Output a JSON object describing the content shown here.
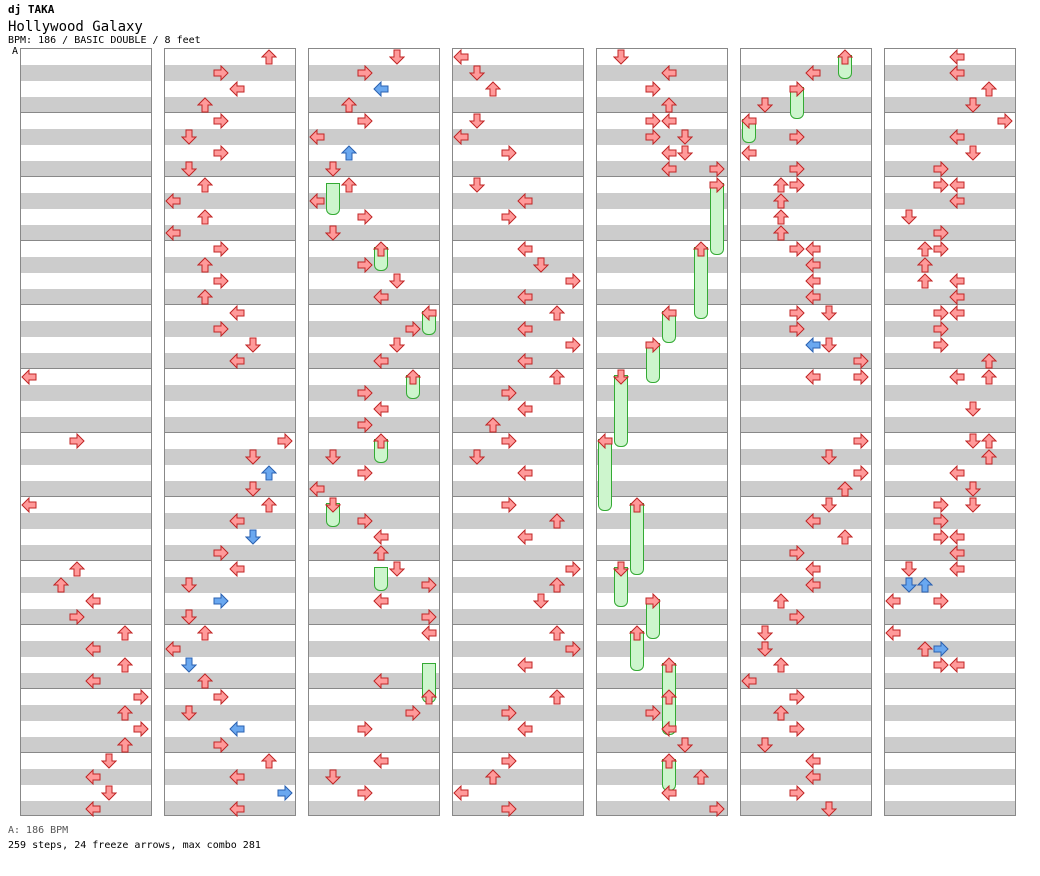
{
  "header": {
    "artist": "dj TAKA",
    "title": "Hollywood Galaxy",
    "info": "BPM: 186 / BASIC DOUBLE / 8 feet",
    "marker": "A"
  },
  "footer": {
    "bpm": "A: 186 BPM",
    "stats": "259 steps, 24 freeze arrows, max combo 281"
  },
  "colors": {
    "arrow_red": "#ff9a9a",
    "arrow_blue": "#6aa8f0",
    "freeze_green": "#cdf5cd"
  },
  "columns": [
    {
      "arrows": [
        [
          20,
          0,
          "L"
        ],
        [
          24,
          3,
          "R"
        ],
        [
          28,
          0,
          "L"
        ],
        [
          32,
          3,
          "U"
        ],
        [
          33,
          2,
          "U"
        ],
        [
          34,
          4,
          "L"
        ],
        [
          35,
          3,
          "R"
        ],
        [
          36,
          6,
          "U"
        ],
        [
          37,
          4,
          "L"
        ],
        [
          38,
          6,
          "U"
        ],
        [
          39,
          4,
          "L"
        ],
        [
          40,
          7,
          "R"
        ],
        [
          41,
          6,
          "U"
        ],
        [
          42,
          7,
          "R"
        ],
        [
          43,
          6,
          "U"
        ],
        [
          44,
          5,
          "D"
        ],
        [
          45,
          4,
          "L"
        ],
        [
          46,
          5,
          "D"
        ],
        [
          47,
          4,
          "L"
        ]
      ],
      "freezes": []
    },
    {
      "arrows": [
        [
          0,
          6,
          "U"
        ],
        [
          1,
          3,
          "R"
        ],
        [
          2,
          4,
          "L"
        ],
        [
          3,
          2,
          "U"
        ],
        [
          4,
          3,
          "R"
        ],
        [
          5,
          1,
          "D"
        ],
        [
          6,
          3,
          "R"
        ],
        [
          7,
          1,
          "D"
        ],
        [
          8,
          2,
          "U"
        ],
        [
          9,
          0,
          "L"
        ],
        [
          10,
          2,
          "U"
        ],
        [
          11,
          0,
          "L"
        ],
        [
          12,
          3,
          "R"
        ],
        [
          13,
          2,
          "U"
        ],
        [
          14,
          3,
          "R"
        ],
        [
          15,
          2,
          "U"
        ],
        [
          16,
          4,
          "L"
        ],
        [
          17,
          3,
          "R"
        ],
        [
          18,
          5,
          "D"
        ],
        [
          19,
          4,
          "L"
        ],
        [
          24,
          7,
          "R"
        ],
        [
          25,
          5,
          "D"
        ],
        [
          26,
          6,
          "U",
          "b"
        ],
        [
          27,
          5,
          "D"
        ],
        [
          28,
          6,
          "U"
        ],
        [
          29,
          4,
          "L"
        ],
        [
          30,
          5,
          "D",
          "b"
        ],
        [
          31,
          3,
          "R"
        ],
        [
          32,
          4,
          "L"
        ],
        [
          33,
          1,
          "D"
        ],
        [
          34,
          3,
          "R",
          "b"
        ],
        [
          35,
          1,
          "D"
        ],
        [
          36,
          2,
          "U"
        ],
        [
          37,
          0,
          "L"
        ],
        [
          38,
          1,
          "D",
          "b"
        ],
        [
          39,
          2,
          "U"
        ],
        [
          40,
          3,
          "R"
        ],
        [
          41,
          1,
          "D"
        ],
        [
          42,
          4,
          "L",
          "b"
        ],
        [
          43,
          3,
          "R"
        ],
        [
          44,
          6,
          "U"
        ],
        [
          45,
          4,
          "L"
        ],
        [
          46,
          7,
          "R",
          "b"
        ],
        [
          47,
          4,
          "L"
        ]
      ],
      "freezes": []
    },
    {
      "arrows": [
        [
          0,
          5,
          "D"
        ],
        [
          1,
          3,
          "R"
        ],
        [
          2,
          4,
          "L",
          "b"
        ],
        [
          3,
          2,
          "U"
        ],
        [
          4,
          3,
          "R"
        ],
        [
          5,
          0,
          "L"
        ],
        [
          6,
          2,
          "U",
          "b"
        ],
        [
          7,
          1,
          "D"
        ],
        [
          8,
          2,
          "U"
        ],
        [
          9,
          0,
          "L"
        ],
        [
          10,
          3,
          "R"
        ],
        [
          11,
          1,
          "D"
        ],
        [
          12,
          4,
          "U"
        ],
        [
          13,
          3,
          "R"
        ],
        [
          14,
          5,
          "D"
        ],
        [
          15,
          4,
          "L"
        ],
        [
          16,
          7,
          "L"
        ],
        [
          17,
          6,
          "R"
        ],
        [
          18,
          5,
          "D"
        ],
        [
          19,
          4,
          "L"
        ],
        [
          20,
          6,
          "U"
        ],
        [
          21,
          3,
          "R"
        ],
        [
          22,
          4,
          "L"
        ],
        [
          23,
          3,
          "R"
        ],
        [
          24,
          4,
          "U"
        ],
        [
          25,
          1,
          "D"
        ],
        [
          26,
          3,
          "R"
        ],
        [
          27,
          0,
          "L"
        ],
        [
          28,
          1,
          "D"
        ],
        [
          29,
          3,
          "R"
        ],
        [
          30,
          4,
          "L"
        ],
        [
          31,
          4,
          "U"
        ],
        [
          32,
          5,
          "D"
        ],
        [
          33,
          7,
          "R"
        ],
        [
          34,
          4,
          "L"
        ],
        [
          35,
          7,
          "R"
        ],
        [
          36,
          7,
          "L"
        ],
        [
          39,
          4,
          "L"
        ],
        [
          40,
          7,
          "U"
        ],
        [
          41,
          6,
          "R"
        ],
        [
          42,
          3,
          "R"
        ],
        [
          44,
          4,
          "L"
        ],
        [
          45,
          1,
          "D"
        ],
        [
          46,
          3,
          "R"
        ]
      ],
      "freezes": [
        [
          8,
          1,
          2
        ],
        [
          12,
          4,
          1.5
        ],
        [
          16,
          7,
          1.5
        ],
        [
          20,
          6,
          1.5
        ],
        [
          24,
          4,
          1.5
        ],
        [
          28,
          1,
          1.5
        ],
        [
          32,
          4,
          1.5
        ],
        [
          38,
          7,
          2.5
        ]
      ]
    },
    {
      "arrows": [
        [
          0,
          0,
          "L"
        ],
        [
          1,
          1,
          "D"
        ],
        [
          2,
          2,
          "U"
        ],
        [
          4,
          1,
          "D"
        ],
        [
          5,
          0,
          "L"
        ],
        [
          6,
          3,
          "R"
        ],
        [
          8,
          1,
          "D"
        ],
        [
          9,
          4,
          "L"
        ],
        [
          10,
          3,
          "R"
        ],
        [
          12,
          4,
          "L"
        ],
        [
          13,
          5,
          "D"
        ],
        [
          14,
          7,
          "R"
        ],
        [
          15,
          4,
          "L"
        ],
        [
          16,
          6,
          "U"
        ],
        [
          17,
          4,
          "L"
        ],
        [
          18,
          7,
          "R"
        ],
        [
          19,
          4,
          "L"
        ],
        [
          20,
          6,
          "U"
        ],
        [
          21,
          3,
          "R"
        ],
        [
          22,
          4,
          "L"
        ],
        [
          23,
          2,
          "U"
        ],
        [
          24,
          3,
          "R"
        ],
        [
          25,
          1,
          "D"
        ],
        [
          26,
          4,
          "L"
        ],
        [
          28,
          3,
          "R"
        ],
        [
          29,
          6,
          "U"
        ],
        [
          30,
          4,
          "L"
        ],
        [
          32,
          7,
          "R"
        ],
        [
          33,
          6,
          "U"
        ],
        [
          34,
          5,
          "D"
        ],
        [
          36,
          6,
          "U"
        ],
        [
          37,
          7,
          "R"
        ],
        [
          38,
          4,
          "L"
        ],
        [
          40,
          6,
          "U"
        ],
        [
          41,
          3,
          "R"
        ],
        [
          42,
          4,
          "L"
        ],
        [
          44,
          3,
          "R"
        ],
        [
          45,
          2,
          "U"
        ],
        [
          46,
          0,
          "L"
        ],
        [
          47,
          3,
          "R"
        ]
      ],
      "freezes": []
    },
    {
      "arrows": [
        [
          0,
          1,
          "D"
        ],
        [
          1,
          4,
          "L"
        ],
        [
          2,
          3,
          "R"
        ],
        [
          3,
          4,
          "U"
        ],
        [
          4,
          3,
          "R"
        ],
        [
          4,
          4,
          "L"
        ],
        [
          5,
          3,
          "R"
        ],
        [
          5,
          5,
          "D"
        ],
        [
          6,
          4,
          "L"
        ],
        [
          6,
          5,
          "D"
        ],
        [
          7,
          4,
          "L"
        ],
        [
          7,
          7,
          "R"
        ],
        [
          8,
          7,
          "R"
        ],
        [
          12,
          6,
          "U"
        ],
        [
          16,
          4,
          "L"
        ],
        [
          18,
          3,
          "R"
        ],
        [
          20,
          1,
          "D"
        ],
        [
          24,
          0,
          "L"
        ],
        [
          28,
          2,
          "U"
        ],
        [
          32,
          1,
          "D"
        ],
        [
          34,
          3,
          "R"
        ],
        [
          36,
          2,
          "U"
        ],
        [
          38,
          4,
          "U"
        ],
        [
          40,
          4,
          "U"
        ],
        [
          41,
          3,
          "R"
        ],
        [
          42,
          4,
          "L"
        ],
        [
          43,
          5,
          "D"
        ],
        [
          44,
          4,
          "U"
        ],
        [
          45,
          6,
          "U"
        ],
        [
          46,
          4,
          "L"
        ],
        [
          47,
          7,
          "R"
        ]
      ],
      "freezes": [
        [
          8,
          7,
          4.5
        ],
        [
          12,
          6,
          4.5
        ],
        [
          16,
          4,
          2
        ],
        [
          18,
          3,
          2.5
        ],
        [
          20,
          1,
          4.5
        ],
        [
          24,
          0,
          4.5
        ],
        [
          28,
          2,
          4.5
        ],
        [
          32,
          1,
          2.5
        ],
        [
          34,
          3,
          2.5
        ],
        [
          36,
          2,
          2.5
        ],
        [
          38,
          4,
          2.5
        ],
        [
          40,
          4,
          2.5
        ],
        [
          44,
          4,
          2
        ]
      ]
    },
    {
      "arrows": [
        [
          0,
          6,
          "U"
        ],
        [
          1,
          4,
          "L"
        ],
        [
          2,
          3,
          "R"
        ],
        [
          3,
          1,
          "D"
        ],
        [
          4,
          0,
          "L"
        ],
        [
          5,
          3,
          "R"
        ],
        [
          6,
          0,
          "L"
        ],
        [
          7,
          3,
          "R"
        ],
        [
          8,
          2,
          "U"
        ],
        [
          8,
          3,
          "R"
        ],
        [
          9,
          2,
          "U"
        ],
        [
          10,
          2,
          "U"
        ],
        [
          11,
          2,
          "U"
        ],
        [
          12,
          3,
          "R"
        ],
        [
          12,
          4,
          "L"
        ],
        [
          13,
          4,
          "L"
        ],
        [
          14,
          4,
          "L"
        ],
        [
          15,
          4,
          "L"
        ],
        [
          16,
          3,
          "R"
        ],
        [
          16,
          5,
          "D"
        ],
        [
          17,
          3,
          "R"
        ],
        [
          18,
          4,
          "L",
          "b"
        ],
        [
          18,
          5,
          "D"
        ],
        [
          19,
          7,
          "R"
        ],
        [
          20,
          4,
          "L"
        ],
        [
          20,
          7,
          "R"
        ],
        [
          24,
          7,
          "R"
        ],
        [
          25,
          5,
          "D"
        ],
        [
          26,
          7,
          "R"
        ],
        [
          27,
          6,
          "U"
        ],
        [
          28,
          5,
          "D"
        ],
        [
          29,
          4,
          "L"
        ],
        [
          30,
          6,
          "U"
        ],
        [
          31,
          3,
          "R"
        ],
        [
          32,
          4,
          "L"
        ],
        [
          33,
          4,
          "L"
        ],
        [
          34,
          2,
          "U"
        ],
        [
          35,
          3,
          "R"
        ],
        [
          36,
          1,
          "D"
        ],
        [
          37,
          1,
          "D"
        ],
        [
          38,
          2,
          "U"
        ],
        [
          39,
          0,
          "L"
        ],
        [
          40,
          3,
          "R"
        ],
        [
          41,
          2,
          "U"
        ],
        [
          42,
          3,
          "R"
        ],
        [
          43,
          1,
          "D"
        ],
        [
          44,
          4,
          "L"
        ],
        [
          45,
          4,
          "L"
        ],
        [
          46,
          3,
          "R"
        ],
        [
          47,
          5,
          "D"
        ]
      ],
      "freezes": [
        [
          0,
          6,
          1.5
        ],
        [
          2,
          3,
          2
        ],
        [
          4,
          0,
          1.5
        ]
      ]
    },
    {
      "arrows": [
        [
          0,
          4,
          "L"
        ],
        [
          1,
          4,
          "L"
        ],
        [
          2,
          6,
          "U"
        ],
        [
          3,
          5,
          "D"
        ],
        [
          4,
          7,
          "R"
        ],
        [
          5,
          4,
          "L"
        ],
        [
          6,
          5,
          "D"
        ],
        [
          7,
          3,
          "R"
        ],
        [
          8,
          3,
          "R"
        ],
        [
          8,
          4,
          "L"
        ],
        [
          9,
          4,
          "L"
        ],
        [
          10,
          1,
          "D"
        ],
        [
          11,
          3,
          "R"
        ],
        [
          12,
          2,
          "U"
        ],
        [
          12,
          3,
          "R"
        ],
        [
          13,
          2,
          "U"
        ],
        [
          14,
          2,
          "U"
        ],
        [
          14,
          4,
          "L"
        ],
        [
          15,
          4,
          "L"
        ],
        [
          16,
          3,
          "R"
        ],
        [
          16,
          4,
          "L"
        ],
        [
          17,
          3,
          "R"
        ],
        [
          18,
          3,
          "R"
        ],
        [
          19,
          6,
          "U"
        ],
        [
          20,
          4,
          "L"
        ],
        [
          20,
          6,
          "U"
        ],
        [
          22,
          5,
          "D"
        ],
        [
          24,
          5,
          "D"
        ],
        [
          24,
          6,
          "U"
        ],
        [
          25,
          6,
          "U"
        ],
        [
          26,
          4,
          "L"
        ],
        [
          27,
          5,
          "D"
        ],
        [
          28,
          3,
          "R"
        ],
        [
          28,
          5,
          "D"
        ],
        [
          29,
          3,
          "R"
        ],
        [
          30,
          3,
          "R"
        ],
        [
          30,
          4,
          "L"
        ],
        [
          31,
          4,
          "L"
        ],
        [
          32,
          1,
          "D"
        ],
        [
          32,
          4,
          "L"
        ],
        [
          33,
          1,
          "D",
          "b"
        ],
        [
          33,
          2,
          "U",
          "b"
        ],
        [
          34,
          0,
          "L"
        ],
        [
          34,
          3,
          "R"
        ],
        [
          36,
          0,
          "L"
        ],
        [
          37,
          2,
          "U"
        ],
        [
          37,
          3,
          "R",
          "b"
        ],
        [
          38,
          3,
          "R"
        ],
        [
          38,
          4,
          "L"
        ]
      ],
      "freezes": []
    }
  ]
}
